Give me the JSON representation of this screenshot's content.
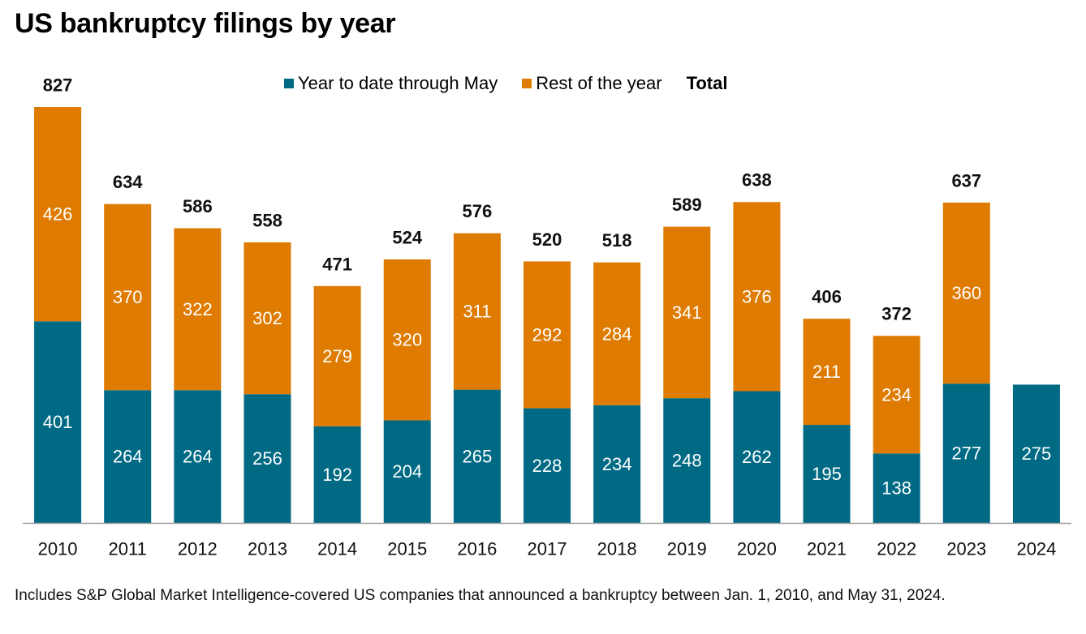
{
  "title": "US bankruptcy filings by year",
  "legend": {
    "ytd_label": "Year to date through May",
    "rest_label": "Rest of the year",
    "total_label": "Total"
  },
  "colors": {
    "ytd": "#006a84",
    "rest": "#de7b00",
    "axis": "#9a9a9a"
  },
  "footnote": "Includes S&P Global Market Intelligence-covered US companies that announced a bankruptcy between Jan. 1, 2010, and May 31, 2024.",
  "chart_data": {
    "type": "bar",
    "stacked": true,
    "title": "US bankruptcy filings by year",
    "categories": [
      "2010",
      "2011",
      "2012",
      "2013",
      "2014",
      "2015",
      "2016",
      "2017",
      "2018",
      "2019",
      "2020",
      "2021",
      "2022",
      "2023",
      "2024"
    ],
    "series": [
      {
        "name": "Year to date through May",
        "values": [
          401,
          264,
          264,
          256,
          192,
          204,
          265,
          228,
          234,
          248,
          262,
          195,
          138,
          277,
          275
        ]
      },
      {
        "name": "Rest of the year",
        "values": [
          426,
          370,
          322,
          302,
          279,
          320,
          311,
          292,
          284,
          341,
          376,
          211,
          234,
          360,
          null
        ]
      }
    ],
    "totals": [
      827,
      634,
      586,
      558,
      471,
      524,
      576,
      520,
      518,
      589,
      638,
      406,
      372,
      637,
      null
    ],
    "ylim": [
      0,
      827
    ],
    "xlabel": "",
    "ylabel": "",
    "grid": false,
    "legend_position": "top"
  }
}
